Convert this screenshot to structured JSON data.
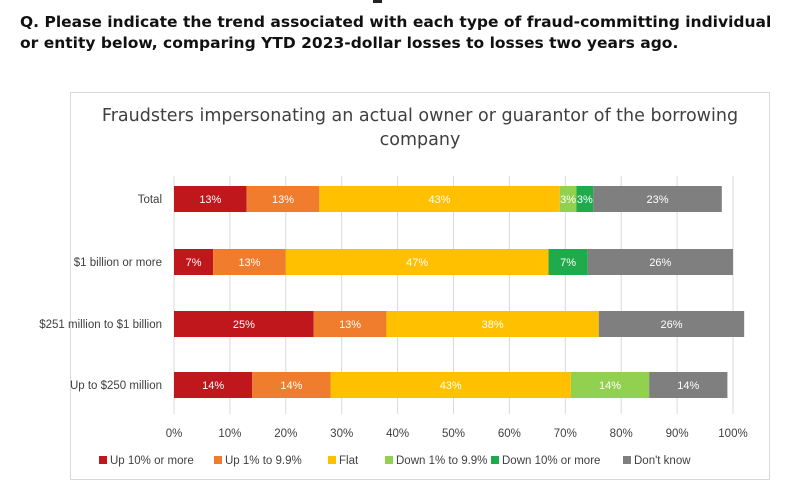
{
  "question": "Q. Please indicate the trend associated with each type of fraud-committing individual or entity below, comparing YTD 2023-dollar losses to losses two years ago.",
  "chart_data": {
    "type": "bar",
    "orientation": "horizontal-stacked-100",
    "title": "Fraudsters impersonating an actual owner or guarantor of the borrowing company",
    "categories": [
      "Total",
      "$1 billion or more",
      "$251 million to $1 billion",
      "Up to $250 million"
    ],
    "series": [
      {
        "name": "Up 10% or more",
        "color": "#c0171c",
        "values": [
          13,
          7,
          25,
          14
        ],
        "labels": [
          "13%",
          "7%",
          "25%",
          "14%"
        ]
      },
      {
        "name": "Up 1% to 9.9%",
        "color": "#ef7d2d",
        "values": [
          13,
          13,
          13,
          14
        ],
        "labels": [
          "13%",
          "13%",
          "13%",
          "14%"
        ]
      },
      {
        "name": "Flat",
        "color": "#ffc000",
        "values": [
          43,
          47,
          38,
          43
        ],
        "labels": [
          "43%",
          "47%",
          "38%",
          "43%"
        ]
      },
      {
        "name": "Down 1% to 9.9%",
        "color": "#92d050",
        "values": [
          3,
          0,
          0,
          14
        ],
        "labels": [
          "3%",
          "",
          "",
          "14%"
        ]
      },
      {
        "name": "Down 10% or more",
        "color": "#1faa4b",
        "values": [
          3,
          7,
          0,
          0
        ],
        "labels": [
          "3%",
          "7%",
          "",
          ""
        ]
      },
      {
        "name": "Don't know",
        "color": "#7f7f7f",
        "values": [
          23,
          26,
          26,
          14
        ],
        "labels": [
          "23%",
          "26%",
          "26%",
          "14%"
        ]
      }
    ],
    "x_ticks": [
      "0%",
      "10%",
      "20%",
      "30%",
      "40%",
      "50%",
      "60%",
      "70%",
      "80%",
      "90%",
      "100%"
    ],
    "xlim": [
      0,
      100
    ],
    "grid": true,
    "legend_position": "bottom"
  }
}
